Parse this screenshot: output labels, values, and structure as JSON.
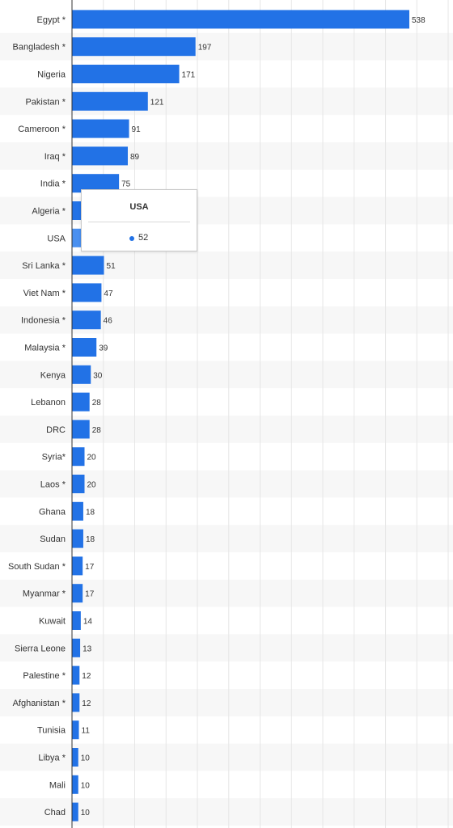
{
  "chart_data": {
    "type": "bar",
    "orientation": "horizontal",
    "categories": [
      "Egypt *",
      "Bangladesh *",
      "Nigeria",
      "Pakistan *",
      "Cameroon *",
      "Iraq *",
      "India *",
      "Algeria *",
      "USA",
      "Sri Lanka *",
      "Viet Nam *",
      "Indonesia *",
      "Malaysia *",
      "Kenya",
      "Lebanon",
      "DRC",
      "Syria*",
      "Laos *",
      "Ghana",
      "Sudan",
      "South Sudan *",
      "Myanmar *",
      "Kuwait",
      "Sierra Leone",
      "Palestine *",
      "Afghanistan *",
      "Tunisia",
      "Libya *",
      "Mali",
      "Chad"
    ],
    "series": [
      {
        "values": [
          538,
          197,
          171,
          121,
          91,
          89,
          75,
          56,
          52,
          51,
          47,
          46,
          39,
          30,
          28,
          28,
          20,
          20,
          18,
          18,
          17,
          17,
          14,
          13,
          12,
          12,
          11,
          10,
          10,
          10
        ]
      }
    ],
    "data_labels": [
      "538",
      "197",
      "171",
      "121",
      "91",
      "89",
      "75",
      "",
      "",
      "51",
      "47",
      "46",
      "39",
      "30",
      "28",
      "28",
      "20",
      "20",
      "18",
      "18",
      "17",
      "17",
      "14",
      "13",
      "12",
      "12",
      "11",
      "10",
      "10",
      "10"
    ],
    "xlim": [
      0,
      600
    ],
    "grid": true,
    "bar_color": "#2272e6",
    "highlight_color": "#4a90f0",
    "alt_row_color": "#f7f7f7",
    "grid_color": "#e6e6e6",
    "axis_color": "#333333",
    "highlighted_category": "USA"
  },
  "tooltip": {
    "title": "USA",
    "value": "52",
    "dot_color": "#2272e6"
  }
}
